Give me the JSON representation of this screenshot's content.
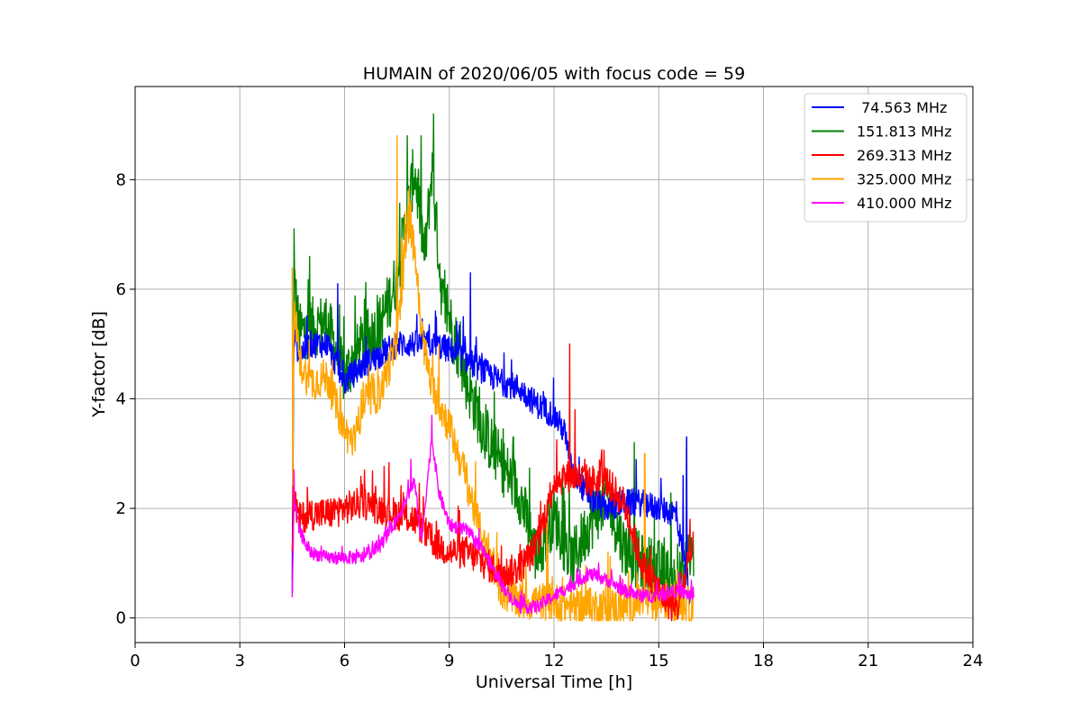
{
  "chart_data": {
    "type": "line",
    "title": "HUMAIN of 2020/06/05 with focus code = 59",
    "xlabel": "Universal Time [h]",
    "ylabel": "Y-factor [dB]",
    "xlim": [
      0,
      24
    ],
    "ylim": [
      -0.45,
      9.7
    ],
    "xticks": [
      0,
      3,
      6,
      9,
      12,
      15,
      18,
      21,
      24
    ],
    "yticks": [
      0,
      2,
      4,
      6,
      8
    ],
    "grid": true,
    "legend_position": "top-right",
    "series": [
      {
        "name": " 74.563 MHz",
        "color": "#0000ff",
        "x": [
          4.5,
          4.55,
          4.7,
          5.0,
          5.5,
          6.0,
          6.5,
          7.0,
          7.5,
          8.0,
          8.5,
          9.0,
          9.5,
          10.0,
          10.5,
          11.0,
          11.5,
          12.0,
          12.3,
          12.5,
          13.0,
          13.5,
          14.0,
          14.5,
          15.0,
          15.5,
          15.9
        ],
        "y": [
          0.5,
          5.2,
          4.8,
          5.0,
          5.0,
          4.3,
          4.6,
          4.8,
          5.0,
          5.0,
          5.0,
          4.9,
          4.7,
          4.5,
          4.3,
          4.2,
          3.9,
          3.7,
          3.4,
          2.7,
          2.2,
          2.0,
          2.1,
          2.1,
          2.0,
          1.9,
          0.4
        ],
        "noise": 0.25,
        "spikes": [
          [
            5.8,
            6.1
          ],
          [
            9.6,
            6.3
          ],
          [
            8.6,
            5.6
          ],
          [
            9.4,
            5.5
          ],
          [
            15.7,
            2.6
          ],
          [
            15.8,
            3.3
          ]
        ]
      },
      {
        "name": "151.813 MHz",
        "color": "#008000",
        "x": [
          4.5,
          4.55,
          4.7,
          5.0,
          5.5,
          6.0,
          6.5,
          7.0,
          7.5,
          8.0,
          8.3,
          8.5,
          8.8,
          9.0,
          9.5,
          10.0,
          10.5,
          11.0,
          11.5,
          12.0,
          12.5,
          13.0,
          13.5,
          14.0,
          14.5,
          15.0,
          15.5,
          16.0
        ],
        "y": [
          0.5,
          6.2,
          5.2,
          5.3,
          5.4,
          4.4,
          5.0,
          5.3,
          6.2,
          8.2,
          6.6,
          8.2,
          5.8,
          5.5,
          4.3,
          3.4,
          2.8,
          2.3,
          1.1,
          1.9,
          1.0,
          1.7,
          2.2,
          1.3,
          1.0,
          0.9,
          0.6,
          1.2
        ],
        "noise": 0.55,
        "spikes": [
          [
            4.55,
            7.1
          ],
          [
            5.0,
            6.6
          ],
          [
            7.8,
            8.8
          ],
          [
            8.55,
            9.2
          ],
          [
            14.3,
            3.2
          ],
          [
            15.8,
            3.3
          ]
        ]
      },
      {
        "name": "269.313 MHz",
        "color": "#ff0000",
        "x": [
          4.5,
          4.55,
          4.7,
          5.0,
          5.5,
          6.0,
          6.5,
          7.0,
          7.5,
          8.0,
          8.5,
          9.0,
          9.5,
          10.0,
          10.5,
          11.0,
          11.5,
          12.0,
          12.5,
          13.0,
          13.5,
          14.0,
          14.5,
          15.0,
          15.5,
          16.0
        ],
        "y": [
          1.0,
          2.2,
          1.8,
          1.9,
          1.9,
          2.0,
          2.1,
          2.0,
          1.9,
          1.8,
          1.4,
          1.2,
          1.2,
          1.0,
          0.8,
          0.9,
          1.3,
          2.5,
          2.6,
          2.5,
          2.5,
          2.1,
          1.0,
          0.5,
          0.1,
          1.3
        ],
        "noise": 0.3,
        "spikes": [
          [
            12.45,
            5.0
          ],
          [
            12.6,
            3.8
          ],
          [
            15.9,
            1.8
          ]
        ]
      },
      {
        "name": "325.000 MHz",
        "color": "#ffa500",
        "x": [
          4.5,
          4.55,
          4.7,
          5.0,
          5.5,
          6.0,
          6.3,
          6.5,
          7.0,
          7.5,
          7.8,
          8.0,
          8.2,
          8.5,
          9.0,
          9.5,
          10.0,
          10.5,
          11.0,
          11.5,
          12.0,
          12.5,
          13.0,
          13.5,
          14.0,
          14.5,
          15.0,
          15.5,
          16.0
        ],
        "y": [
          1.0,
          5.6,
          4.7,
          4.3,
          4.4,
          3.4,
          3.2,
          3.9,
          4.1,
          5.0,
          7.2,
          6.8,
          5.2,
          4.2,
          3.5,
          2.5,
          1.3,
          0.5,
          0.3,
          0.3,
          0.3,
          0.2,
          0.2,
          0.2,
          0.2,
          0.3,
          0.3,
          0.3,
          0.2
        ],
        "noise": 0.35,
        "spikes": [
          [
            4.5,
            6.4
          ],
          [
            7.5,
            8.8
          ],
          [
            7.9,
            7.6
          ],
          [
            8.7,
            5.0
          ],
          [
            11.8,
            2.1
          ],
          [
            14.6,
            3.0
          ]
        ]
      },
      {
        "name": "410.000 MHz",
        "color": "#ff00ff",
        "x": [
          4.5,
          4.55,
          4.7,
          5.0,
          5.5,
          6.0,
          6.5,
          7.0,
          7.5,
          8.0,
          8.2,
          8.5,
          8.7,
          9.0,
          9.5,
          10.0,
          10.5,
          11.0,
          11.5,
          12.0,
          12.5,
          13.0,
          13.5,
          14.0,
          14.5,
          15.0,
          15.5,
          16.0
        ],
        "y": [
          0.4,
          2.2,
          1.6,
          1.2,
          1.1,
          1.1,
          1.1,
          1.3,
          1.8,
          2.5,
          1.4,
          3.3,
          2.3,
          1.7,
          1.6,
          1.2,
          0.6,
          0.2,
          0.2,
          0.4,
          0.6,
          0.8,
          0.7,
          0.5,
          0.4,
          0.4,
          0.5,
          0.4
        ],
        "noise": 0.12,
        "spikes": [
          [
            4.55,
            2.7
          ],
          [
            8.5,
            3.7
          ],
          [
            7.9,
            2.9
          ]
        ]
      }
    ]
  }
}
